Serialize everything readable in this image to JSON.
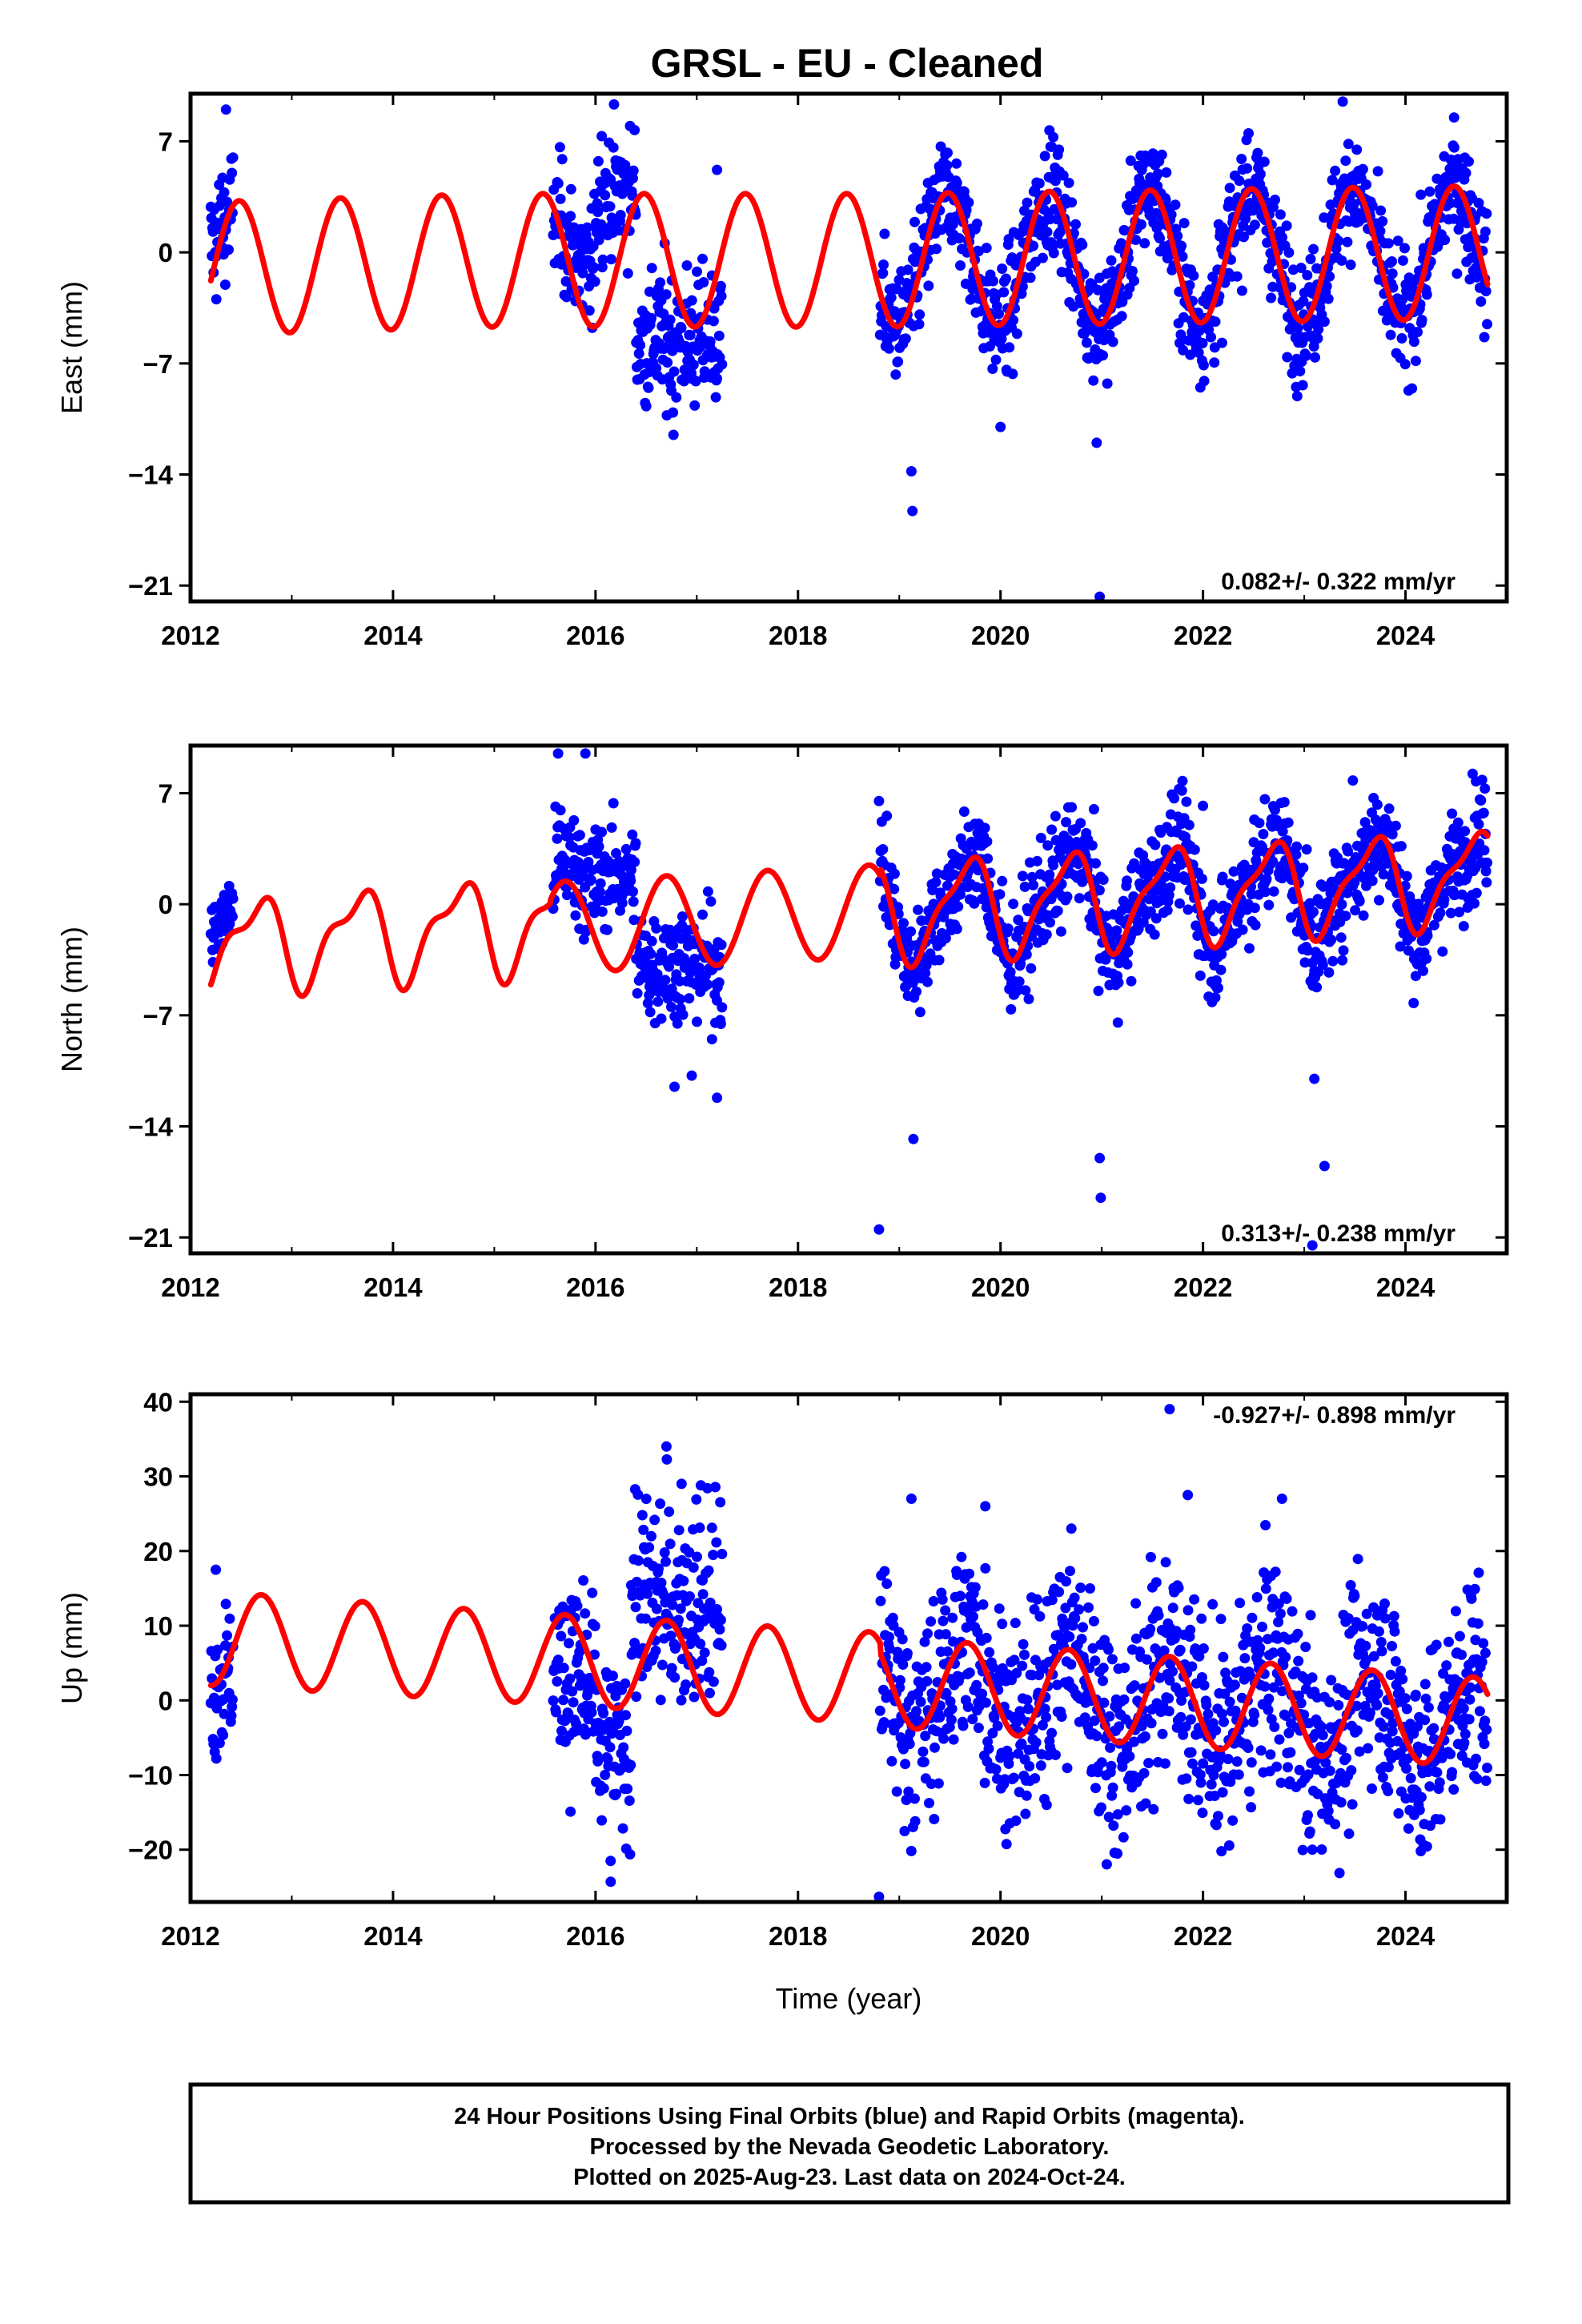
{
  "colors": {
    "points": "#0000ff",
    "fit": "#ff0000",
    "frame": "#000000",
    "background": "#ffffff"
  },
  "figure": {
    "title": "GRSL  - EU - Cleaned",
    "xlabel": "Time (year)"
  },
  "footer": {
    "lines": [
      "24 Hour Positions Using Final Orbits (blue) and Rapid Orbits (magenta).",
      "Processed by the Nevada Geodetic Laboratory.",
      "Plotted on 2025-Aug-23. Last data on 2024-Oct-24."
    ]
  },
  "chart_data": [
    {
      "type": "scatter",
      "ylabel": "East (mm)",
      "xlim": [
        2012,
        2025
      ],
      "ylim": [
        -22,
        10
      ],
      "xticks": [
        2012,
        2014,
        2016,
        2018,
        2020,
        2022,
        2024
      ],
      "yticks": [
        -21,
        -14,
        -7,
        0,
        7
      ],
      "rate_label": "0.082+/- 0.322 mm/yr",
      "legend_placement": "bottom-right",
      "grid": false,
      "data_span": [
        2012.2,
        2024.81
      ],
      "gaps": [
        [
          2012.42,
          2015.58
        ],
        [
          2017.25,
          2018.81
        ]
      ],
      "segments": [
        [
          2012.2,
          2012.42,
          2.2,
          2.0
        ],
        [
          2015.58,
          2016.0,
          2.0,
          2.0
        ],
        [
          2016.0,
          2016.4,
          3.8,
          2.0
        ],
        [
          2016.4,
          2017.25,
          -5.5,
          2.2
        ],
        [
          2018.81,
          2019.6,
          -0.5,
          1.8
        ],
        [
          2019.6,
          2024.81,
          0.5,
          1.8
        ]
      ],
      "series": [
        {
          "name": "Final Orbits",
          "points": [
            [
              2012.35,
              9.0
            ],
            [
              2016.77,
              -11.5
            ],
            [
              2017.2,
              5.2
            ],
            [
              2019.12,
              -13.8
            ],
            [
              2019.13,
              -16.3
            ],
            [
              2020.0,
              -11.0
            ],
            [
              2020.95,
              -12.0
            ],
            [
              2020.98,
              -21.7
            ],
            [
              2022.45,
              7.5
            ],
            [
              2023.38,
              9.5
            ],
            [
              2024.48,
              8.5
            ]
          ]
        }
      ],
      "fit": [
        {
          "start": 2012.2,
          "end": 2015.0,
          "offset_start": -1.0,
          "offset_end": -0.5,
          "amp_start": 4.2,
          "amp_end": 4.2,
          "phase": 2012.23,
          "amp2": 0.0,
          "phase2": 2012.0
        },
        {
          "start": 2015.0,
          "end": 2018.81,
          "offset_start": -0.5,
          "offset_end": -0.5,
          "amp_start": 4.2,
          "amp_end": 4.2,
          "phase": 2015.23,
          "amp2": 0.0,
          "phase2": 2012.0
        },
        {
          "start": 2018.81,
          "end": 2024.81,
          "offset_start": -0.5,
          "offset_end": 0.0,
          "amp_start": 4.2,
          "amp_end": 4.2,
          "phase": 2019.23,
          "amp2": 0.0,
          "phase2": 2012.0
        }
      ]
    },
    {
      "type": "scatter",
      "ylabel": "North (mm)",
      "xlim": [
        2012,
        2025
      ],
      "ylim": [
        -22,
        10
      ],
      "xticks": [
        2012,
        2014,
        2016,
        2018,
        2020,
        2022,
        2024
      ],
      "yticks": [
        -21,
        -14,
        -7,
        0,
        7
      ],
      "rate_label": "0.313+/- 0.238 mm/yr",
      "legend_placement": "bottom-right",
      "grid": false,
      "data_span": [
        2012.2,
        2024.81
      ],
      "gaps": [
        [
          2012.42,
          2015.58
        ],
        [
          2017.25,
          2018.81
        ]
      ],
      "segments": [
        [
          2012.2,
          2012.42,
          1.0,
          1.2
        ],
        [
          2015.58,
          2016.0,
          3.8,
          1.8
        ],
        [
          2016.0,
          2016.4,
          1.8,
          1.5
        ],
        [
          2016.4,
          2017.25,
          -3.8,
          1.8
        ],
        [
          2018.81,
          2024.81,
          0.3,
          1.7
        ]
      ],
      "series": [
        {
          "name": "Final Orbits",
          "points": [
            [
              2015.63,
              9.5
            ],
            [
              2015.9,
              9.5
            ],
            [
              2016.78,
              -11.5
            ],
            [
              2016.95,
              -10.8
            ],
            [
              2017.2,
              -12.2
            ],
            [
              2018.8,
              6.5
            ],
            [
              2018.8,
              -20.5
            ],
            [
              2019.14,
              -14.8
            ],
            [
              2020.98,
              -16.0
            ],
            [
              2020.99,
              -18.5
            ],
            [
              2022.0,
              6.2
            ],
            [
              2023.1,
              -11.0
            ],
            [
              2023.2,
              -16.5
            ],
            [
              2023.08,
              -21.5
            ],
            [
              2023.48,
              7.8
            ]
          ]
        }
      ],
      "fit": [
        {
          "start": 2012.2,
          "end": 2015.55,
          "offset_start": -2.6,
          "offset_end": -1.2,
          "amp_start": 2.6,
          "amp_end": 2.8,
          "phase": 2012.4,
          "amp2": 1.1,
          "phase2": 2012.2
        },
        {
          "start": 2015.55,
          "end": 2018.81,
          "offset_start": -1.5,
          "offset_end": -0.4,
          "amp_start": 2.9,
          "amp_end": 2.9,
          "phase": 2015.45,
          "amp2": 0.0,
          "phase2": 2012.2
        },
        {
          "start": 2018.81,
          "end": 2024.81,
          "offset_start": -0.5,
          "offset_end": 1.7,
          "amp_start": 3.0,
          "amp_end": 2.7,
          "phase": 2019.42,
          "amp2": 0.9,
          "phase2": 2019.2
        }
      ]
    },
    {
      "type": "scatter",
      "ylabel": "Up (mm)",
      "xlim": [
        2012,
        2025
      ],
      "ylim": [
        -27,
        41
      ],
      "xticks": [
        2012,
        2014,
        2016,
        2018,
        2020,
        2022,
        2024
      ],
      "yticks": [
        -20,
        -10,
        0,
        10,
        20,
        30,
        40
      ],
      "rate_label": "-0.927+/- 0.898 mm/yr",
      "legend_placement": "top-right",
      "grid": false,
      "data_span": [
        2012.2,
        2024.81
      ],
      "gaps": [
        [
          2012.42,
          2015.58
        ],
        [
          2017.25,
          2018.81
        ]
      ],
      "segments": [
        [
          2012.2,
          2012.42,
          2.0,
          5.0
        ],
        [
          2015.58,
          2016.0,
          -4.0,
          6.5
        ],
        [
          2016.0,
          2016.35,
          -7.0,
          6.0
        ],
        [
          2016.35,
          2017.25,
          13.0,
          7.0
        ],
        [
          2018.81,
          2024.81,
          0.5,
          7.0
        ]
      ],
      "series": [
        {
          "name": "Final Orbits",
          "points": [
            [
              2012.25,
              17.5
            ],
            [
              2016.15,
              -24.3
            ],
            [
              2016.7,
              34.0
            ],
            [
              2016.85,
              29.0
            ],
            [
              2018.8,
              -26.3
            ],
            [
              2019.12,
              27.0
            ],
            [
              2019.85,
              26.0
            ],
            [
              2020.7,
              23.0
            ],
            [
              2021.67,
              39.0
            ],
            [
              2021.85,
              27.5
            ],
            [
              2022.78,
              27.0
            ],
            [
              2023.08,
              -20.0
            ]
          ]
        }
      ],
      "fit": [
        {
          "start": 2012.2,
          "end": 2015.55,
          "offset_start": 8.3,
          "offset_end": 5.5,
          "amp_start": 6.3,
          "amp_end": 6.0,
          "phase": 2012.45,
          "amp2": 0.0,
          "phase2": 2012.0
        },
        {
          "start": 2015.55,
          "end": 2018.81,
          "offset_start": 5.5,
          "offset_end": 3.0,
          "amp_start": 6.1,
          "amp_end": 6.1,
          "phase": 2015.45,
          "amp2": 0.0,
          "phase2": 2012.0
        },
        {
          "start": 2018.81,
          "end": 2024.81,
          "offset_start": 2.5,
          "offset_end": -3.0,
          "amp_start": 6.0,
          "amp_end": 6.0,
          "phase": 2019.42,
          "amp2": 0.0,
          "phase2": 2012.0
        }
      ]
    }
  ]
}
